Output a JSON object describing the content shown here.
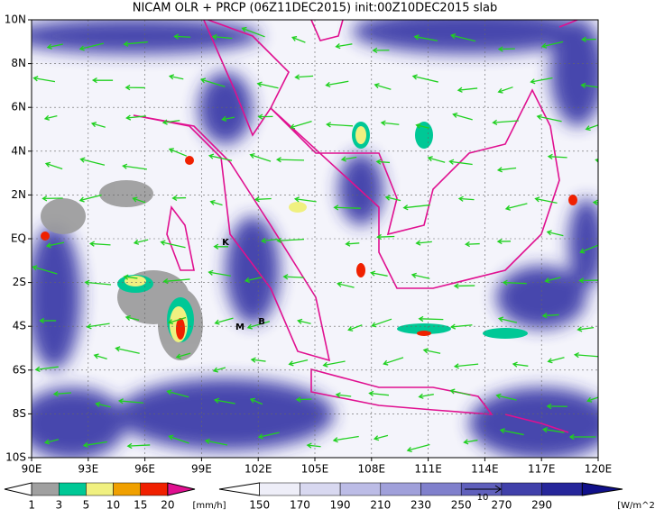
{
  "title": "NICAM OLR + PRCP (06Z11DEC2015) init:00Z10DEC2015 slab",
  "map": {
    "lon_labels": [
      "90E",
      "93E",
      "96E",
      "99E",
      "102E",
      "105E",
      "108E",
      "111E",
      "114E",
      "117E",
      "120E"
    ],
    "lat_labels": [
      "10N",
      "8N",
      "6N",
      "4N",
      "2N",
      "EQ",
      "2S",
      "4S",
      "6S",
      "8S",
      "10S"
    ],
    "places": [
      {
        "label": "K"
      },
      {
        "label": "M"
      },
      {
        "label": "B"
      }
    ]
  },
  "legend": {
    "precip": {
      "labels": [
        1,
        3,
        5,
        10,
        15,
        20
      ],
      "unit": "[mm/h]"
    },
    "olr": {
      "labels": [
        150,
        170,
        190,
        210,
        230,
        250,
        270,
        290
      ],
      "unit": "[W/m^2]"
    },
    "vector_ref": 10
  }
}
